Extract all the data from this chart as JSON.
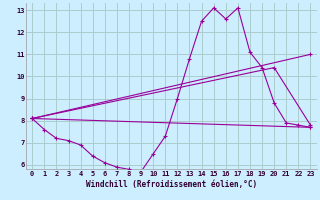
{
  "xlabel": "Windchill (Refroidissement éolien,°C)",
  "bg_color": "#cceeff",
  "grid_color": "#aacccc",
  "line_color": "#990099",
  "xlim": [
    -0.5,
    23.5
  ],
  "ylim": [
    5.8,
    13.3
  ],
  "xticks": [
    0,
    1,
    2,
    3,
    4,
    5,
    6,
    7,
    8,
    9,
    10,
    11,
    12,
    13,
    14,
    15,
    16,
    17,
    18,
    19,
    20,
    21,
    22,
    23
  ],
  "yticks": [
    6,
    7,
    8,
    9,
    10,
    11,
    12,
    13
  ],
  "series1_x": [
    0,
    1,
    2,
    3,
    4,
    5,
    6,
    7,
    8,
    9,
    10,
    11,
    12,
    13,
    14,
    15,
    16,
    17,
    18,
    19,
    20,
    21,
    22,
    23
  ],
  "series1_y": [
    8.1,
    7.6,
    7.2,
    7.1,
    6.9,
    6.4,
    6.1,
    5.9,
    5.8,
    5.7,
    6.5,
    7.3,
    9.0,
    10.8,
    12.5,
    13.1,
    12.6,
    13.1,
    11.1,
    10.4,
    8.8,
    7.9,
    7.8,
    7.7
  ],
  "series2_x": [
    0,
    23
  ],
  "series2_y": [
    8.1,
    11.0
  ],
  "series3_x": [
    0,
    20,
    23
  ],
  "series3_y": [
    8.1,
    10.4,
    7.8
  ],
  "series4_x": [
    0,
    23
  ],
  "series4_y": [
    8.1,
    7.7
  ],
  "tick_fontsize": 5.0,
  "xlabel_fontsize": 5.5
}
